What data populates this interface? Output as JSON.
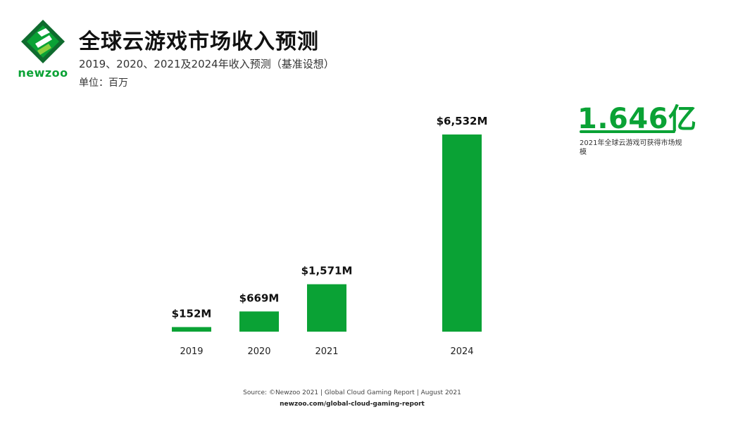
{
  "header": {
    "logo_text": "newzoo",
    "title": "全球云游戏市场收入预测",
    "subtitle": "2019、2020、2021及2024年收入预测（基准设想）",
    "unit": "单位：百万"
  },
  "colors": {
    "brand_green": "#0aa235",
    "logo_dark_green": "#0f6b2e",
    "logo_light_green": "#8ccf3f"
  },
  "chart_data": {
    "type": "bar",
    "categories": [
      "2019",
      "2020",
      "2021",
      "2024"
    ],
    "values": [
      152,
      669,
      1571,
      6532
    ],
    "value_labels": [
      "$152M",
      "$669M",
      "$1,571M",
      "$6,532M"
    ],
    "title": "全球云游戏市场收入预测",
    "xlabel": "",
    "ylabel": "",
    "ylim": [
      0,
      6532
    ],
    "grid": false,
    "color": "#0aa235"
  },
  "callout": {
    "value": "1.646亿",
    "caption": "2021年全球云游戏可获得市场规模"
  },
  "footer": {
    "source": "Source: ©Newzoo 2021 | Global Cloud Gaming Report | August 2021",
    "url": "newzoo.com/global-cloud-gaming-report"
  }
}
